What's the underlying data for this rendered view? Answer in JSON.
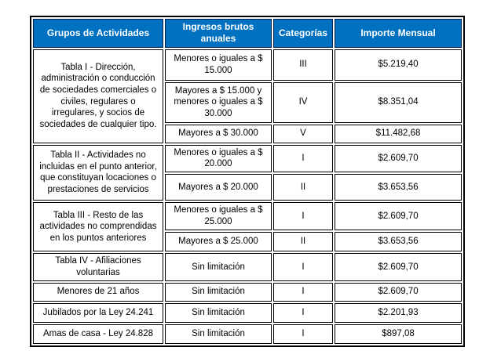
{
  "colors": {
    "header_bg": "#0070C0",
    "header_text": "#FFFFFF",
    "border": "#000000",
    "body_text": "#000000",
    "page_bg": "#FFFFFF"
  },
  "table": {
    "headers": [
      "Grupos de Actividades",
      "Ingresos brutos anuales",
      "Categorías",
      "Importe Mensual"
    ],
    "groups": [
      {
        "label": "Tabla I - Dirección, administración o conducción de sociedades comerciales o civiles, regulares o irregulares, y socios de sociedades de cualquier tipo.",
        "rows": [
          {
            "ingresos": "Menores o iguales a $ 15.000",
            "categoria": "III",
            "importe": "$5.219,40"
          },
          {
            "ingresos": "Mayores a $ 15.000 y menores o iguales a $ 30.000",
            "categoria": "IV",
            "importe": "$8.351,04"
          },
          {
            "ingresos": "Mayores a $ 30.000",
            "categoria": "V",
            "importe": "$11.482,68"
          }
        ]
      },
      {
        "label": "Tabla II - Actividades no incluidas en el punto anterior, que constituyan locaciones o prestaciones de servicios",
        "rows": [
          {
            "ingresos": "Menores o iguales a $ 20.000",
            "categoria": "I",
            "importe": "$2.609,70"
          },
          {
            "ingresos": "Mayores a $ 20.000",
            "categoria": "II",
            "importe": "$3.653,56"
          }
        ]
      },
      {
        "label": "Tabla III - Resto de las actividades no comprendidas en los puntos anteriores",
        "rows": [
          {
            "ingresos": "Menores o iguales a $ 25.000",
            "categoria": "I",
            "importe": "$2.609,70"
          },
          {
            "ingresos": "Mayores a $ 25.000",
            "categoria": "II",
            "importe": "$3.653,56"
          }
        ]
      },
      {
        "label": "Tabla IV - Afiliaciones voluntarias",
        "rows": [
          {
            "ingresos": "Sin limitación",
            "categoria": "I",
            "importe": "$2.609,70"
          }
        ]
      },
      {
        "label": "Menores de 21 años",
        "rows": [
          {
            "ingresos": "Sin limitación",
            "categoria": "I",
            "importe": "$2.609,70"
          }
        ]
      },
      {
        "label": "Jubilados por la Ley 24.241",
        "rows": [
          {
            "ingresos": "Sin limitación",
            "categoria": "I",
            "importe": "$2.201,93"
          }
        ]
      },
      {
        "label": "Amas de casa - Ley 24.828",
        "rows": [
          {
            "ingresos": "Sin limitación",
            "categoria": "I",
            "importe": "$897,08"
          }
        ]
      }
    ]
  }
}
